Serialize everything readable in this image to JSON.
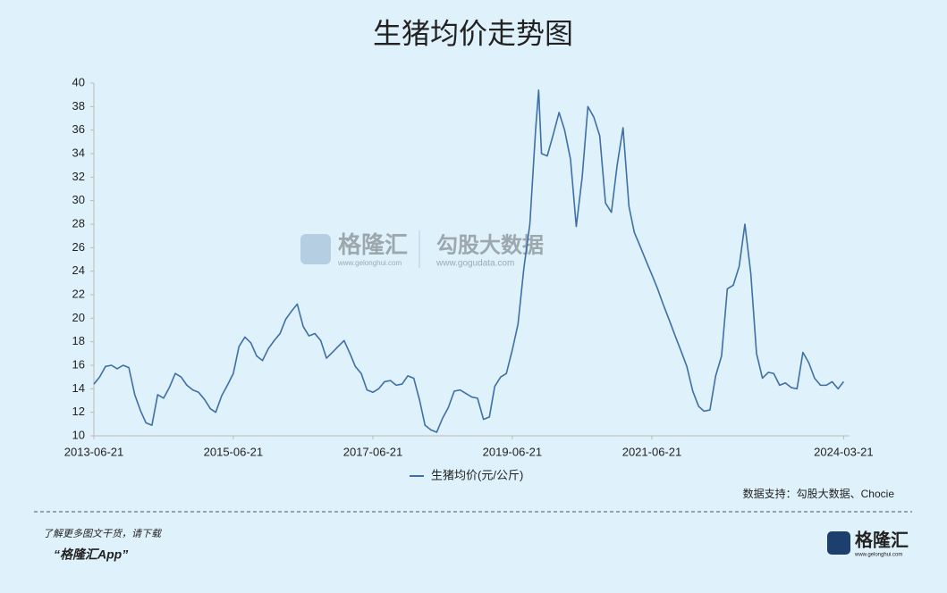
{
  "chart_data": {
    "type": "line",
    "title": "生猪均价走势图",
    "x": [
      "2013-06-21",
      "2013-07-21",
      "2013-08-21",
      "2013-09-21",
      "2013-10-21",
      "2013-11-21",
      "2013-12-21",
      "2014-01-21",
      "2014-02-21",
      "2014-03-21",
      "2014-04-21",
      "2014-05-21",
      "2014-06-21",
      "2014-07-21",
      "2014-08-21",
      "2014-09-21",
      "2014-10-21",
      "2014-11-21",
      "2014-12-21",
      "2015-01-21",
      "2015-02-21",
      "2015-03-21",
      "2015-04-21",
      "2015-05-21",
      "2015-06-21",
      "2015-07-21",
      "2015-08-21",
      "2015-09-21",
      "2015-10-21",
      "2015-11-21",
      "2015-12-21",
      "2016-01-21",
      "2016-02-21",
      "2016-03-21",
      "2016-04-21",
      "2016-05-21",
      "2016-06-21",
      "2016-07-21",
      "2016-08-21",
      "2016-09-21",
      "2016-10-21",
      "2016-11-21",
      "2016-12-21",
      "2017-01-21",
      "2017-02-21",
      "2017-03-21",
      "2017-04-21",
      "2017-05-21",
      "2017-06-21",
      "2017-07-21",
      "2017-08-21",
      "2017-09-21",
      "2017-10-21",
      "2017-11-21",
      "2017-12-21",
      "2018-01-21",
      "2018-02-21",
      "2018-03-21",
      "2018-04-21",
      "2018-05-21",
      "2018-06-21",
      "2018-07-21",
      "2018-08-21",
      "2018-09-21",
      "2018-10-21",
      "2018-11-21",
      "2018-12-21",
      "2019-01-21",
      "2019-02-21",
      "2019-03-21",
      "2019-04-21",
      "2019-05-21",
      "2019-06-21",
      "2019-07-21",
      "2019-08-21",
      "2019-09-21",
      "2019-10-21",
      "2019-11-06",
      "2019-11-21",
      "2019-12-21",
      "2020-01-21",
      "2020-02-21",
      "2020-03-21",
      "2020-04-21",
      "2020-05-21",
      "2020-06-21",
      "2020-07-21",
      "2020-08-21",
      "2020-09-21",
      "2020-10-21",
      "2020-11-21",
      "2020-12-21",
      "2021-01-21",
      "2021-02-21",
      "2021-03-21",
      "2021-04-21",
      "2021-05-21",
      "2021-06-21",
      "2021-07-21",
      "2021-08-21",
      "2021-09-21",
      "2021-10-21",
      "2021-11-21",
      "2021-12-21",
      "2022-01-21",
      "2022-02-21",
      "2022-03-21",
      "2022-04-21",
      "2022-05-21",
      "2022-06-21",
      "2022-07-21",
      "2022-08-21",
      "2022-09-21",
      "2022-10-21",
      "2022-11-21",
      "2022-12-21",
      "2023-01-21",
      "2023-02-21",
      "2023-03-21",
      "2023-04-21",
      "2023-05-21",
      "2023-06-21",
      "2023-07-21",
      "2023-08-21",
      "2023-09-21",
      "2023-10-21",
      "2023-11-21",
      "2023-12-21",
      "2024-01-21",
      "2024-02-21",
      "2024-03-21"
    ],
    "series": [
      {
        "name": "生猪均价(元/公斤)",
        "color": "#3f6fa6",
        "values": [
          14.4,
          15.0,
          15.9,
          16.0,
          15.7,
          16.0,
          15.8,
          13.5,
          12.1,
          11.1,
          10.9,
          13.5,
          13.2,
          14.1,
          15.3,
          15.0,
          14.3,
          13.9,
          13.7,
          13.1,
          12.3,
          12.0,
          13.4,
          14.3,
          15.3,
          17.6,
          18.4,
          17.9,
          16.8,
          16.4,
          17.4,
          18.1,
          18.7,
          19.9,
          20.6,
          21.2,
          19.3,
          18.5,
          18.7,
          18.1,
          16.6,
          17.1,
          17.6,
          18.1,
          17.0,
          15.9,
          15.3,
          13.9,
          13.7,
          14.0,
          14.6,
          14.7,
          14.3,
          14.4,
          15.1,
          14.9,
          13.0,
          10.9,
          10.5,
          10.3,
          11.5,
          12.4,
          13.8,
          13.9,
          13.6,
          13.3,
          13.2,
          11.4,
          11.6,
          14.2,
          15.0,
          15.3,
          17.3,
          19.5,
          24.3,
          28.0,
          36.0,
          39.4,
          34.0,
          33.8,
          35.6,
          37.5,
          36.0,
          33.5,
          27.8,
          32.0,
          38.0,
          37.1,
          35.5,
          29.8,
          29.0,
          33.0,
          36.2,
          29.5,
          27.3,
          26.1,
          24.9,
          23.7,
          22.5,
          21.1,
          19.8,
          18.5,
          17.2,
          15.9,
          13.8,
          12.5,
          12.1,
          12.2,
          15.1,
          16.8,
          22.5,
          22.8,
          24.4,
          28.0,
          23.8,
          17.0,
          14.9,
          15.4,
          15.3,
          14.3,
          14.5,
          14.1,
          14.0,
          17.1,
          16.2,
          14.9,
          14.3,
          14.3,
          14.6,
          14.0,
          14.6
        ]
      }
    ],
    "xlim": [
      "2013-06-21",
      "2024-04-21"
    ],
    "xticks": [
      "2013-06-21",
      "2015-06-21",
      "2017-06-21",
      "2019-06-21",
      "2021-06-21",
      "2024-03-21"
    ],
    "ylim": [
      10,
      40
    ],
    "yticks": [
      10,
      12,
      14,
      16,
      18,
      20,
      22,
      24,
      26,
      28,
      30,
      32,
      34,
      36,
      38,
      40
    ],
    "legend": "bottom",
    "source": "数据支持：勾股大数据、Chocie"
  },
  "watermark": {
    "left": "格隆汇",
    "left_url": "www.gelonghui.com",
    "right": "勾股大数据",
    "right_url": "www.gogudata.com"
  },
  "footer": {
    "prompt": "了解更多图文干货，请下载",
    "app": "“格隆汇App”",
    "logo": "格隆汇",
    "logo_url": "www.gelonghui.com"
  }
}
